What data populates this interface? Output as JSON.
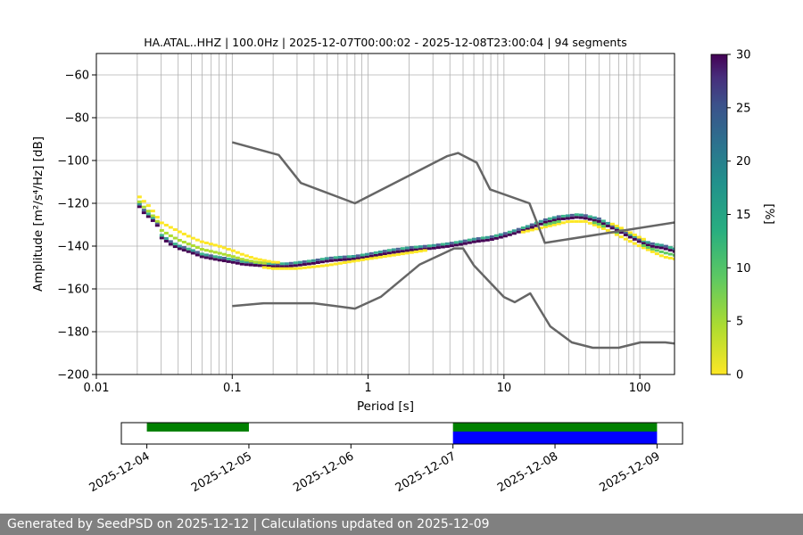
{
  "chart_data": [
    {
      "type": "heatmap",
      "title": "HA.ATAL..HHZ | 100.0Hz | 2025-12-07T00:00:02 - 2025-12-08T23:00:04 | 94 segments",
      "xlabel": "Period [s]",
      "ylabel": "Amplitude [m²/s⁴/Hz] [dB]",
      "x_scale": "log",
      "xlim": [
        0.01,
        180
      ],
      "ylim": [
        -200,
        -50
      ],
      "x_ticks": [
        0.01,
        0.1,
        1,
        10,
        100
      ],
      "x_tick_labels": [
        "0.01",
        "0.1",
        "1",
        "10",
        "100"
      ],
      "y_ticks": [
        -200,
        -180,
        -160,
        -140,
        -120,
        -100,
        -80,
        -60
      ],
      "y_tick_labels": [
        "−200",
        "−180",
        "−160",
        "−140",
        "−120",
        "−100",
        "−80",
        "−60"
      ],
      "grid": true,
      "colorbar": {
        "label": "[%]",
        "range": [
          0,
          30
        ],
        "ticks": [
          0,
          5,
          10,
          15,
          20,
          25,
          30
        ],
        "colormap": "viridis_r"
      },
      "psd_mode": {
        "x": [
          0.02,
          0.022,
          0.025,
          0.028,
          0.03,
          0.035,
          0.04,
          0.05,
          0.06,
          0.08,
          0.1,
          0.12,
          0.15,
          0.2,
          0.25,
          0.3,
          0.4,
          0.5,
          0.6,
          0.8,
          1.0,
          1.5,
          2,
          3,
          4,
          5,
          6,
          8,
          10,
          12,
          15,
          20,
          25,
          30,
          35,
          40,
          50,
          60,
          70,
          80,
          100,
          120,
          150,
          180
        ],
        "y": [
          -120,
          -124,
          -127,
          -130,
          -136,
          -139,
          -141,
          -143,
          -145,
          -146.5,
          -147.5,
          -148.5,
          -149,
          -149.5,
          -149.5,
          -149,
          -148,
          -147,
          -146.5,
          -146,
          -145,
          -143,
          -142,
          -141,
          -140,
          -139,
          -138,
          -137,
          -135.5,
          -134,
          -132,
          -129,
          -127.5,
          -127,
          -126.5,
          -127,
          -128.5,
          -131,
          -133,
          -135,
          -138,
          -140,
          -141,
          -142.5
        ]
      },
      "psd_upper_spread": {
        "x": [
          0.02,
          0.025,
          0.03,
          0.04,
          0.05,
          0.06,
          0.08,
          0.1,
          0.12,
          0.15,
          0.2,
          0.3,
          0.5,
          0.8,
          1.0,
          2,
          4,
          6,
          10,
          20,
          30,
          40,
          50,
          70,
          100,
          150,
          180
        ],
        "y": [
          -116,
          -122,
          -129,
          -133,
          -136,
          -138,
          -140,
          -142,
          -144,
          -146,
          -147.5,
          -148,
          -147,
          -146,
          -145,
          -142,
          -140,
          -137.5,
          -134.5,
          -129,
          -126.5,
          -125.5,
          -127,
          -131,
          -136,
          -141,
          -143
        ]
      },
      "psd_lower_spread": {
        "x": [
          0.1,
          0.15,
          0.2,
          0.3,
          0.5,
          1.0,
          3,
          10,
          30,
          40,
          60,
          100,
          150,
          180
        ],
        "y": [
          -147.5,
          -149.5,
          -150.5,
          -150.5,
          -149,
          -146,
          -141.5,
          -135.5,
          -128.5,
          -128.5,
          -133,
          -140,
          -145,
          -146
        ]
      },
      "new_high_noise_model": {
        "x": [
          0.1,
          0.22,
          0.32,
          0.8,
          3.8,
          4.6,
          6.3,
          7.9,
          15.4,
          20,
          354.8
        ],
        "y": [
          -91.5,
          -97.4,
          -110.5,
          -120,
          -98,
          -96.5,
          -101,
          -113.5,
          -120,
          -138.5,
          -126
        ]
      },
      "new_low_noise_model": {
        "x": [
          0.1,
          0.17,
          0.4,
          0.8,
          1.24,
          2.4,
          4.3,
          5,
          6,
          10,
          12,
          15.6,
          21.9,
          31.6,
          45,
          70,
          101,
          154,
          180
        ],
        "y": [
          -168,
          -166.7,
          -166.7,
          -169.2,
          -163.7,
          -148.6,
          -141.1,
          -141.1,
          -149,
          -163.8,
          -166.2,
          -162.1,
          -177.5,
          -185,
          -187.5,
          -187.5,
          -185,
          -185,
          -185.5
        ]
      }
    },
    {
      "type": "timeline",
      "x_tick_labels": [
        "2025-12-04",
        "2025-12-05",
        "2025-12-06",
        "2025-12-07",
        "2025-12-08",
        "2025-12-09"
      ],
      "xlim_days": [
        -0.25,
        5.25
      ],
      "available_data": [
        {
          "start": "2025-12-04",
          "end": "2025-12-05",
          "color": "#008000"
        },
        {
          "start": "2025-12-07",
          "end": "2025-12-09",
          "color": "#008000"
        }
      ],
      "psd_used": [
        {
          "start": "2025-12-07",
          "end": "2025-12-09",
          "color": "#0000ff"
        }
      ]
    }
  ],
  "footer": {
    "text": "Generated by SeedPSD on 2025-12-12 | Calculations updated on 2025-12-09"
  },
  "colors": {
    "noise_model": "#666666",
    "grid": "#b0b0b0",
    "footer_bg": "#808080"
  }
}
